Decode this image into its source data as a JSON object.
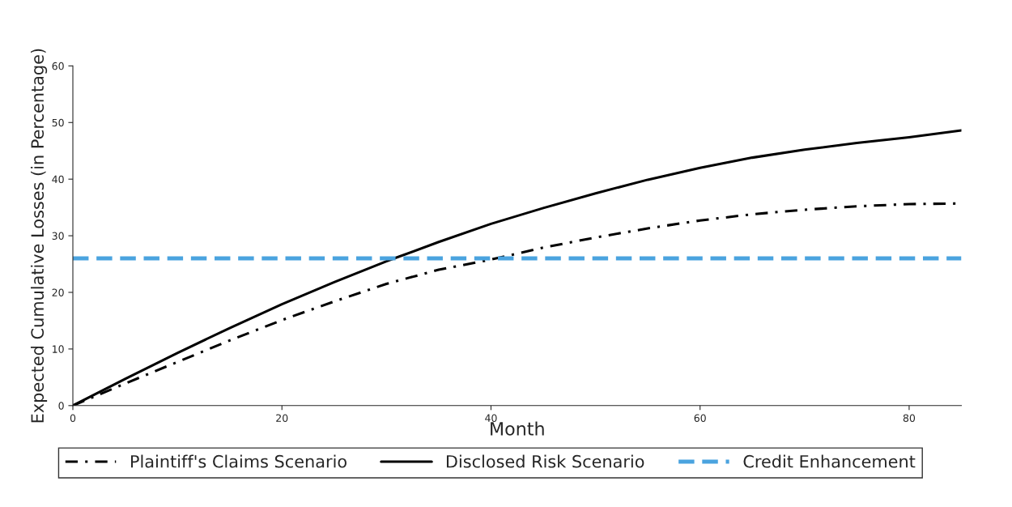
{
  "chart_data": {
    "type": "line",
    "xlabel": "Month",
    "ylabel": "Expected Cumulative Losses (in Percentage)",
    "x": [
      0,
      5,
      10,
      15,
      20,
      25,
      30,
      35,
      40,
      45,
      50,
      55,
      60,
      65,
      70,
      75,
      80,
      85
    ],
    "series": [
      {
        "name": "Plaintiff's Claims Scenario",
        "color": "#000000",
        "line_style": "dashdot",
        "values": [
          0,
          3.9,
          7.7,
          11.5,
          15.1,
          18.4,
          21.5,
          24.0,
          25.8,
          27.9,
          29.7,
          31.3,
          32.7,
          33.8,
          34.6,
          35.2,
          35.6,
          35.7
        ]
      },
      {
        "name": "Disclosed Risk Scenario",
        "color": "#000000",
        "line_style": "solid",
        "values": [
          0,
          4.7,
          9.3,
          13.7,
          17.9,
          21.8,
          25.5,
          28.9,
          32.1,
          34.9,
          37.5,
          39.9,
          42.0,
          43.8,
          45.2,
          46.4,
          47.4,
          48.6
        ]
      },
      {
        "name": "Credit Enhancement",
        "color": "#4aa3df",
        "line_style": "dashed",
        "x": [
          0,
          85
        ],
        "values": [
          26,
          26
        ]
      }
    ],
    "xlim": [
      0,
      85
    ],
    "ylim": [
      0,
      60
    ],
    "xticks": [
      0,
      20,
      40,
      60,
      80
    ],
    "yticks": [
      0,
      10,
      20,
      30,
      40,
      50,
      60
    ],
    "grid": false,
    "legend": "bottom"
  }
}
